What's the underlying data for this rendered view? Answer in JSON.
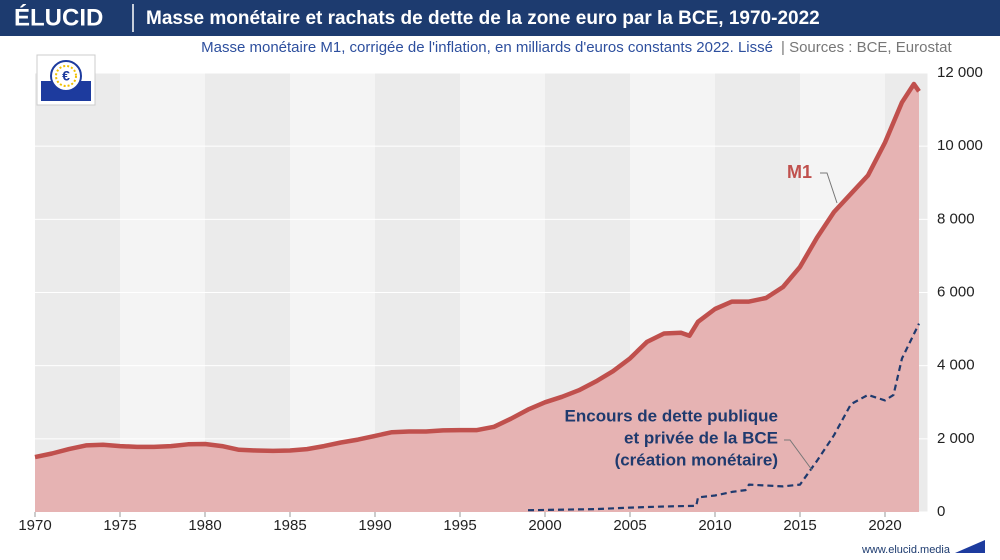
{
  "brand": "ÉLUCID",
  "footer": "www.elucid.media",
  "chart_data": {
    "type": "area-line",
    "title": "Masse monétaire et rachats de dette de la zone euro par la BCE, 1970-2022",
    "subtitle": "Masse monétaire M1, corrigée de l'inflation, en milliards d'euros constants 2022. Lissé",
    "source": "|  Sources : BCE, Eurostat",
    "xlim": [
      1970,
      2022.5
    ],
    "xticks": [
      1970,
      1975,
      1980,
      1985,
      1990,
      1995,
      2000,
      2005,
      2010,
      2015,
      2020
    ],
    "ylim": [
      0,
      12000
    ],
    "yticks": [
      0,
      {
        "value": 2000,
        "label": "2 000"
      },
      {
        "value": 4000,
        "label": "4 000"
      },
      {
        "value": 6000,
        "label": "6 000"
      },
      {
        "value": 8000,
        "label": "8 000"
      },
      {
        "value": 10000,
        "label": "10 000"
      },
      {
        "value": 12000,
        "label": "12 000"
      }
    ],
    "series": [
      {
        "name": "M1",
        "color": "#c0504d",
        "fill": "#e6b3b3",
        "x": [
          1970,
          1971,
          1972,
          1973,
          1974,
          1975,
          1976,
          1977,
          1978,
          1979,
          1980,
          1981,
          1982,
          1983,
          1984,
          1985,
          1986,
          1987,
          1988,
          1989,
          1990,
          1991,
          1992,
          1993,
          1994,
          1995,
          1996,
          1997,
          1998,
          1999,
          2000,
          2001,
          2002,
          2003,
          2004,
          2005,
          2006,
          2007,
          2008,
          2008.5,
          2009,
          2010,
          2011,
          2012,
          2013,
          2014,
          2015,
          2016,
          2017,
          2018,
          2019,
          2020,
          2021,
          2021.7,
          2022
        ],
        "values": [
          1500,
          1600,
          1720,
          1820,
          1840,
          1800,
          1780,
          1780,
          1800,
          1850,
          1860,
          1800,
          1700,
          1680,
          1670,
          1680,
          1720,
          1800,
          1900,
          1980,
          2080,
          2180,
          2200,
          2200,
          2230,
          2240,
          2240,
          2330,
          2550,
          2800,
          3000,
          3150,
          3330,
          3570,
          3850,
          4200,
          4650,
          4880,
          4900,
          4820,
          5200,
          5550,
          5750,
          5750,
          5850,
          6150,
          6700,
          7500,
          8200,
          8700,
          9200,
          10100,
          11200,
          11700,
          11500
        ]
      },
      {
        "name": "Encours de dette publique et privée de la BCE (création monétaire)",
        "color": "#1f3a6e",
        "dashed": true,
        "x": [
          1999,
          2003,
          2005,
          2007,
          2008.9,
          2009,
          2010,
          2011,
          2011.8,
          2012,
          2014,
          2015,
          2016,
          2017,
          2018,
          2019,
          2020,
          2020.5,
          2021,
          2022
        ],
        "values": [
          50,
          80,
          120,
          150,
          170,
          400,
          450,
          550,
          600,
          750,
          700,
          750,
          1400,
          2100,
          2950,
          3200,
          3050,
          3200,
          4200,
          5150
        ]
      }
    ],
    "annotations": [
      {
        "lines": [
          "M1"
        ],
        "color": "#c0504d"
      },
      {
        "lines": [
          "Encours de dette publique",
          "et privée de la BCE",
          "(création monétaire)"
        ],
        "color": "#1f3a6e"
      }
    ]
  }
}
